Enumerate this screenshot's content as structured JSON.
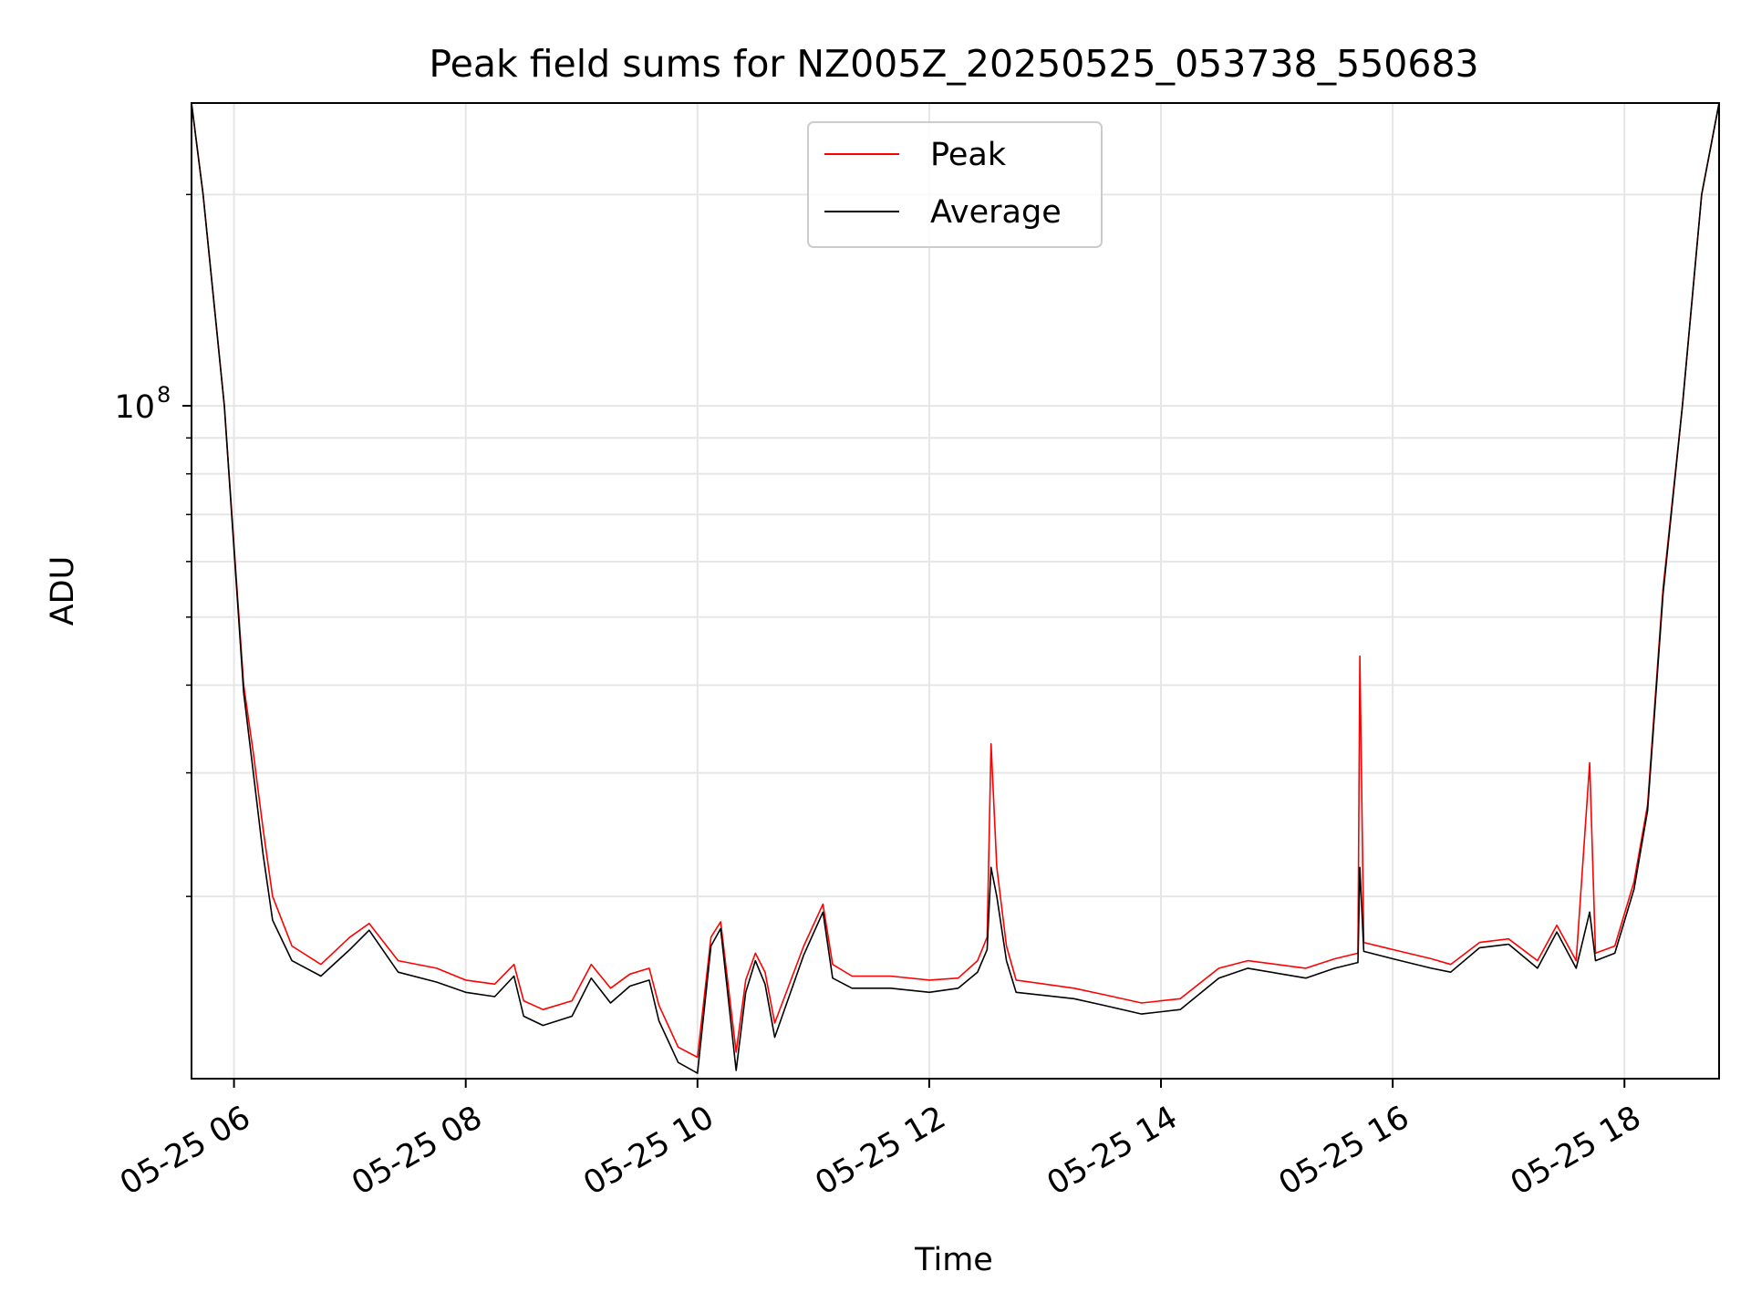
{
  "chart_data": {
    "type": "line",
    "title": "Peak field sums for NZ005Z_20250525_053738_550683",
    "xlabel": "Time",
    "ylabel": "ADU",
    "y_scale": "log",
    "grid": true,
    "legend_position": "top-center",
    "xlim": [
      "2025-05-25 05:38",
      "2025-05-25 18:49"
    ],
    "ylim": [
      11000000,
      270000000
    ],
    "x_ticks": [
      {
        "t": "2025-05-25 06:00",
        "label": "05-25 06"
      },
      {
        "t": "2025-05-25 08:00",
        "label": "05-25 08"
      },
      {
        "t": "2025-05-25 10:00",
        "label": "05-25 10"
      },
      {
        "t": "2025-05-25 12:00",
        "label": "05-25 12"
      },
      {
        "t": "2025-05-25 14:00",
        "label": "05-25 14"
      },
      {
        "t": "2025-05-25 16:00",
        "label": "05-25 16"
      },
      {
        "t": "2025-05-25 18:00",
        "label": "05-25 18"
      }
    ],
    "y_major_ticks": [
      {
        "v": 100000000,
        "base": "10",
        "exp": "8"
      }
    ],
    "y_minor_ticks": [
      20000000,
      30000000,
      40000000,
      50000000,
      60000000,
      70000000,
      80000000,
      90000000,
      200000000
    ],
    "series": [
      {
        "name": "Peak",
        "color": "#ff0000",
        "points": [
          [
            "2025-05-25 05:38",
            270000000
          ],
          [
            "2025-05-25 05:44",
            200000000
          ],
          [
            "2025-05-25 05:55",
            100000000
          ],
          [
            "2025-05-25 06:05",
            40000000
          ],
          [
            "2025-05-25 06:10",
            32000000
          ],
          [
            "2025-05-25 06:15",
            25000000
          ],
          [
            "2025-05-25 06:20",
            20000000
          ],
          [
            "2025-05-25 06:30",
            17000000
          ],
          [
            "2025-05-25 06:45",
            16000000
          ],
          [
            "2025-05-25 07:00",
            17500000
          ],
          [
            "2025-05-25 07:10",
            18300000
          ],
          [
            "2025-05-25 07:25",
            16200000
          ],
          [
            "2025-05-25 07:45",
            15800000
          ],
          [
            "2025-05-25 08:00",
            15200000
          ],
          [
            "2025-05-25 08:15",
            15000000
          ],
          [
            "2025-05-25 08:25",
            16000000
          ],
          [
            "2025-05-25 08:30",
            14200000
          ],
          [
            "2025-05-25 08:40",
            13800000
          ],
          [
            "2025-05-25 08:55",
            14200000
          ],
          [
            "2025-05-25 09:05",
            16000000
          ],
          [
            "2025-05-25 09:15",
            14800000
          ],
          [
            "2025-05-25 09:25",
            15500000
          ],
          [
            "2025-05-25 09:35",
            15800000
          ],
          [
            "2025-05-25 09:40",
            14000000
          ],
          [
            "2025-05-25 09:50",
            12200000
          ],
          [
            "2025-05-25 10:00",
            11800000
          ],
          [
            "2025-05-25 10:07",
            17500000
          ],
          [
            "2025-05-25 10:12",
            18400000
          ],
          [
            "2025-05-25 10:20",
            12000000
          ],
          [
            "2025-05-25 10:25",
            15200000
          ],
          [
            "2025-05-25 10:30",
            16600000
          ],
          [
            "2025-05-25 10:35",
            15600000
          ],
          [
            "2025-05-25 10:40",
            13200000
          ],
          [
            "2025-05-25 10:55",
            17000000
          ],
          [
            "2025-05-25 11:05",
            19500000
          ],
          [
            "2025-05-25 11:10",
            16000000
          ],
          [
            "2025-05-25 11:20",
            15400000
          ],
          [
            "2025-05-25 11:40",
            15400000
          ],
          [
            "2025-05-25 12:00",
            15200000
          ],
          [
            "2025-05-25 12:15",
            15300000
          ],
          [
            "2025-05-25 12:25",
            16200000
          ],
          [
            "2025-05-25 12:30",
            17500000
          ],
          [
            "2025-05-25 12:32",
            33000000
          ],
          [
            "2025-05-25 12:35",
            22000000
          ],
          [
            "2025-05-25 12:40",
            17000000
          ],
          [
            "2025-05-25 12:45",
            15200000
          ],
          [
            "2025-05-25 13:15",
            14800000
          ],
          [
            "2025-05-25 13:30",
            14500000
          ],
          [
            "2025-05-25 13:50",
            14100000
          ],
          [
            "2025-05-25 14:10",
            14300000
          ],
          [
            "2025-05-25 14:30",
            15800000
          ],
          [
            "2025-05-25 14:45",
            16200000
          ],
          [
            "2025-05-25 15:15",
            15800000
          ],
          [
            "2025-05-25 15:30",
            16300000
          ],
          [
            "2025-05-25 15:42",
            16600000
          ],
          [
            "2025-05-25 15:43",
            44000000
          ],
          [
            "2025-05-25 15:45",
            17200000
          ],
          [
            "2025-05-25 16:00",
            16800000
          ],
          [
            "2025-05-25 16:20",
            16300000
          ],
          [
            "2025-05-25 16:30",
            16000000
          ],
          [
            "2025-05-25 16:45",
            17200000
          ],
          [
            "2025-05-25 17:00",
            17400000
          ],
          [
            "2025-05-25 17:15",
            16200000
          ],
          [
            "2025-05-25 17:25",
            18200000
          ],
          [
            "2025-05-25 17:35",
            16200000
          ],
          [
            "2025-05-25 17:42",
            31000000
          ],
          [
            "2025-05-25 17:45",
            16600000
          ],
          [
            "2025-05-25 17:55",
            17000000
          ],
          [
            "2025-05-25 18:05",
            21000000
          ],
          [
            "2025-05-25 18:12",
            27000000
          ],
          [
            "2025-05-25 18:20",
            55000000
          ],
          [
            "2025-05-25 18:30",
            100000000
          ],
          [
            "2025-05-25 18:40",
            200000000
          ],
          [
            "2025-05-25 18:49",
            270000000
          ]
        ]
      },
      {
        "name": "Average",
        "color": "#000000",
        "points": [
          [
            "2025-05-25 05:38",
            270000000
          ],
          [
            "2025-05-25 05:44",
            200000000
          ],
          [
            "2025-05-25 05:55",
            100000000
          ],
          [
            "2025-05-25 06:05",
            39000000
          ],
          [
            "2025-05-25 06:10",
            30000000
          ],
          [
            "2025-05-25 06:15",
            23000000
          ],
          [
            "2025-05-25 06:20",
            18500000
          ],
          [
            "2025-05-25 06:30",
            16200000
          ],
          [
            "2025-05-25 06:45",
            15400000
          ],
          [
            "2025-05-25 07:00",
            16800000
          ],
          [
            "2025-05-25 07:10",
            17900000
          ],
          [
            "2025-05-25 07:25",
            15600000
          ],
          [
            "2025-05-25 07:45",
            15100000
          ],
          [
            "2025-05-25 08:00",
            14600000
          ],
          [
            "2025-05-25 08:15",
            14400000
          ],
          [
            "2025-05-25 08:25",
            15400000
          ],
          [
            "2025-05-25 08:30",
            13500000
          ],
          [
            "2025-05-25 08:40",
            13100000
          ],
          [
            "2025-05-25 08:55",
            13500000
          ],
          [
            "2025-05-25 09:05",
            15300000
          ],
          [
            "2025-05-25 09:15",
            14100000
          ],
          [
            "2025-05-25 09:25",
            14900000
          ],
          [
            "2025-05-25 09:35",
            15200000
          ],
          [
            "2025-05-25 09:40",
            13300000
          ],
          [
            "2025-05-25 09:50",
            11600000
          ],
          [
            "2025-05-25 10:00",
            11200000
          ],
          [
            "2025-05-25 10:07",
            17000000
          ],
          [
            "2025-05-25 10:12",
            18000000
          ],
          [
            "2025-05-25 10:20",
            11300000
          ],
          [
            "2025-05-25 10:25",
            14600000
          ],
          [
            "2025-05-25 10:30",
            16200000
          ],
          [
            "2025-05-25 10:35",
            15000000
          ],
          [
            "2025-05-25 10:40",
            12600000
          ],
          [
            "2025-05-25 10:55",
            16500000
          ],
          [
            "2025-05-25 11:05",
            19000000
          ],
          [
            "2025-05-25 11:10",
            15300000
          ],
          [
            "2025-05-25 11:20",
            14800000
          ],
          [
            "2025-05-25 11:40",
            14800000
          ],
          [
            "2025-05-25 12:00",
            14600000
          ],
          [
            "2025-05-25 12:15",
            14800000
          ],
          [
            "2025-05-25 12:25",
            15600000
          ],
          [
            "2025-05-25 12:30",
            16800000
          ],
          [
            "2025-05-25 12:32",
            22000000
          ],
          [
            "2025-05-25 12:35",
            20000000
          ],
          [
            "2025-05-25 12:40",
            16200000
          ],
          [
            "2025-05-25 12:45",
            14600000
          ],
          [
            "2025-05-25 13:15",
            14300000
          ],
          [
            "2025-05-25 13:30",
            14000000
          ],
          [
            "2025-05-25 13:50",
            13600000
          ],
          [
            "2025-05-25 14:10",
            13800000
          ],
          [
            "2025-05-25 14:30",
            15300000
          ],
          [
            "2025-05-25 14:45",
            15800000
          ],
          [
            "2025-05-25 15:15",
            15300000
          ],
          [
            "2025-05-25 15:30",
            15800000
          ],
          [
            "2025-05-25 15:42",
            16100000
          ],
          [
            "2025-05-25 15:43",
            22000000
          ],
          [
            "2025-05-25 15:45",
            16700000
          ],
          [
            "2025-05-25 16:00",
            16300000
          ],
          [
            "2025-05-25 16:20",
            15800000
          ],
          [
            "2025-05-25 16:30",
            15600000
          ],
          [
            "2025-05-25 16:45",
            16900000
          ],
          [
            "2025-05-25 17:00",
            17100000
          ],
          [
            "2025-05-25 17:15",
            15800000
          ],
          [
            "2025-05-25 17:25",
            17800000
          ],
          [
            "2025-05-25 17:35",
            15800000
          ],
          [
            "2025-05-25 17:42",
            19000000
          ],
          [
            "2025-05-25 17:45",
            16200000
          ],
          [
            "2025-05-25 17:55",
            16600000
          ],
          [
            "2025-05-25 18:05",
            20500000
          ],
          [
            "2025-05-25 18:12",
            26500000
          ],
          [
            "2025-05-25 18:20",
            54000000
          ],
          [
            "2025-05-25 18:30",
            100000000
          ],
          [
            "2025-05-25 18:40",
            200000000
          ],
          [
            "2025-05-25 18:49",
            270000000
          ]
        ]
      }
    ]
  }
}
